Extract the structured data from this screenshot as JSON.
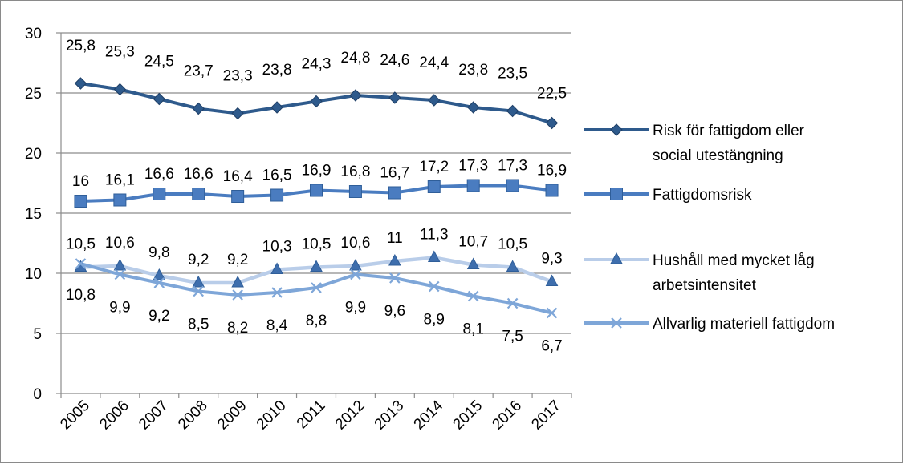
{
  "chart_data": {
    "type": "line",
    "title": "",
    "xlabel": "",
    "ylabel": "",
    "x": [
      "2005",
      "2006",
      "2007",
      "2008",
      "2009",
      "2010",
      "2011",
      "2012",
      "2013",
      "2014",
      "2015",
      "2016",
      "2017"
    ],
    "ylim": [
      0,
      30
    ],
    "yticks": [
      "0",
      "5",
      "10",
      "15",
      "20",
      "25",
      "30"
    ],
    "grid": "horizontal",
    "legend_position": "right",
    "series": [
      {
        "name": "Risk för fattigdom eller social utestängning",
        "legend_lines": [
          "Risk för fattigdom eller",
          "social utestängning"
        ],
        "color": "#2e5a8c",
        "marker": "diamond",
        "values": [
          25.8,
          25.3,
          24.5,
          23.7,
          23.3,
          23.8,
          24.3,
          24.8,
          24.6,
          24.4,
          23.8,
          23.5,
          22.5
        ],
        "labels": [
          "25,8",
          "25,3",
          "24,5",
          "23,7",
          "23,3",
          "23,8",
          "24,3",
          "24,8",
          "24,6",
          "24,4",
          "23,8",
          "23,5",
          "22,5"
        ]
      },
      {
        "name": "Fattigdomsrisk",
        "legend_lines": [
          "Fattigdomsrisk"
        ],
        "color": "#4a7cc0",
        "marker": "square",
        "values": [
          16,
          16.1,
          16.6,
          16.6,
          16.4,
          16.5,
          16.9,
          16.8,
          16.7,
          17.2,
          17.3,
          17.3,
          16.9
        ],
        "labels": [
          "16",
          "16,1",
          "16,6",
          "16,6",
          "16,4",
          "16,5",
          "16,9",
          "16,8",
          "16,7",
          "17,2",
          "17,3",
          "17,3",
          "16,9"
        ]
      },
      {
        "name": "Hushåll med mycket låg arbetsintensitet",
        "legend_lines": [
          "Hushåll med mycket låg",
          "arbetsintensitet"
        ],
        "color": "#b9cde9",
        "marker_color": "#3e6ead",
        "marker": "triangle",
        "values": [
          10.5,
          10.6,
          9.8,
          9.2,
          9.2,
          10.3,
          10.5,
          10.6,
          11,
          11.3,
          10.7,
          10.5,
          9.3
        ],
        "labels": [
          "10,5",
          "10,6",
          "9,8",
          "9,2",
          "9,2",
          "10,3",
          "10,5",
          "10,6",
          "11",
          "11,3",
          "10,7",
          "10,5",
          "9,3"
        ]
      },
      {
        "name": "Allvarlig materiell fattigdom",
        "legend_lines": [
          "Allvarlig materiell fattigdom"
        ],
        "color": "#7ea6d8",
        "marker": "x",
        "values": [
          10.8,
          9.9,
          9.2,
          8.5,
          8.2,
          8.4,
          8.8,
          9.9,
          9.6,
          8.9,
          8.1,
          7.5,
          6.7
        ],
        "labels": [
          "10,8",
          "9,9",
          "9,2",
          "8,5",
          "8,2",
          "8,4",
          "8,8",
          "9,9",
          "9,6",
          "8,9",
          "8,1",
          "7,5",
          "6,7"
        ]
      }
    ]
  }
}
